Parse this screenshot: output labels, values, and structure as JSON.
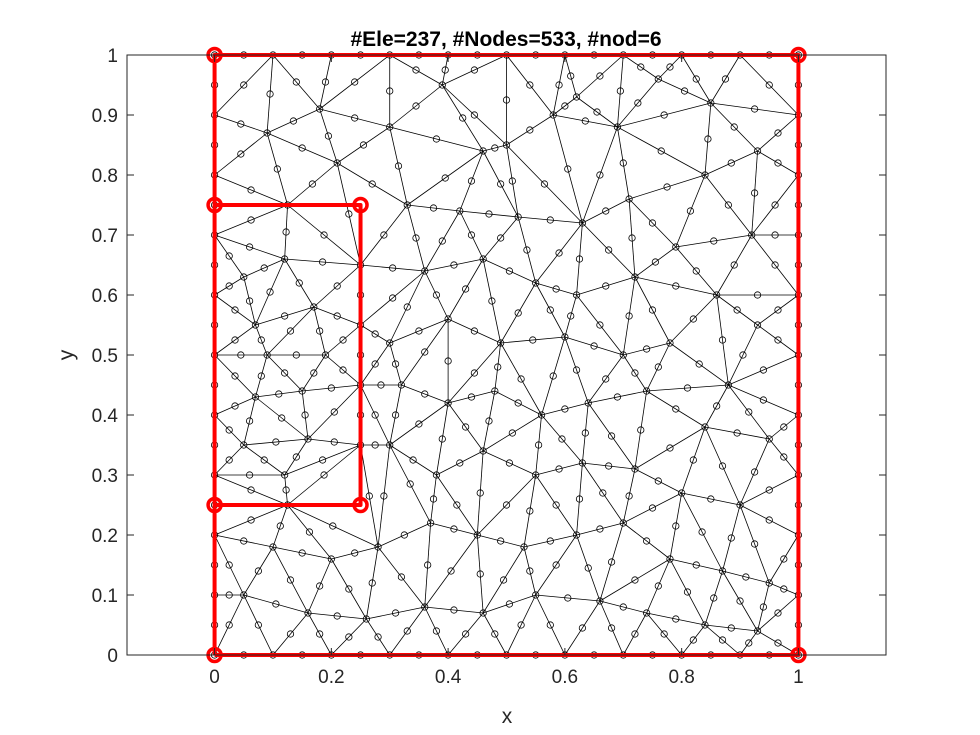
{
  "chart_data": {
    "type": "scatter",
    "title": "#Ele=237, #Nodes=533, #nod=6",
    "xlabel": "x",
    "ylabel": "y",
    "xlim": [
      -0.15,
      1.15
    ],
    "ylim": [
      0,
      1
    ],
    "xticks": [
      0,
      0.2,
      0.4,
      0.6,
      0.8,
      1
    ],
    "xtick_labels": [
      "0",
      "0.2",
      "0.4",
      "0.6",
      "0.8",
      "1"
    ],
    "yticks": [
      0,
      0.1,
      0.2,
      0.3,
      0.4,
      0.5,
      0.6,
      0.7,
      0.8,
      0.9,
      1
    ],
    "ytick_labels": [
      "0",
      "0.1",
      "0.2",
      "0.3",
      "0.4",
      "0.5",
      "0.6",
      "0.7",
      "0.8",
      "0.9",
      "1"
    ],
    "grid": false,
    "colors": {
      "mesh": "#000000",
      "boundary": "#ff0000",
      "axes": "#262626"
    },
    "boundary": {
      "outer": [
        [
          0,
          0
        ],
        [
          1,
          0
        ],
        [
          1,
          1
        ],
        [
          0,
          1
        ],
        [
          0,
          0
        ]
      ],
      "inner": [
        [
          0,
          0.25
        ],
        [
          0.25,
          0.25
        ],
        [
          0.25,
          0.75
        ],
        [
          0,
          0.75
        ]
      ]
    },
    "corner_points": [
      [
        0,
        0
      ],
      [
        1,
        0
      ],
      [
        1,
        1
      ],
      [
        0,
        1
      ],
      [
        0,
        0.75
      ],
      [
        0.25,
        0.75
      ],
      [
        0,
        0.25
      ],
      [
        0.25,
        0.25
      ]
    ],
    "vertices": [
      [
        0,
        0
      ],
      [
        0.1,
        0
      ],
      [
        0.2,
        0
      ],
      [
        0.3,
        0
      ],
      [
        0.4,
        0
      ],
      [
        0.5,
        0
      ],
      [
        0.6,
        0
      ],
      [
        0.7,
        0
      ],
      [
        0.8,
        0
      ],
      [
        0.9,
        0
      ],
      [
        1,
        0
      ],
      [
        0,
        1
      ],
      [
        0.1,
        1
      ],
      [
        0.2,
        1
      ],
      [
        0.3,
        1
      ],
      [
        0.4,
        1
      ],
      [
        0.5,
        1
      ],
      [
        0.6,
        1
      ],
      [
        0.7,
        1
      ],
      [
        0.8,
        1
      ],
      [
        0.9,
        1
      ],
      [
        1,
        1
      ],
      [
        0,
        0.1
      ],
      [
        0,
        0.2
      ],
      [
        0,
        0.3
      ],
      [
        0,
        0.4
      ],
      [
        0,
        0.5
      ],
      [
        0,
        0.6
      ],
      [
        0,
        0.7
      ],
      [
        0,
        0.8
      ],
      [
        0,
        0.9
      ],
      [
        1,
        0.1
      ],
      [
        1,
        0.2
      ],
      [
        1,
        0.3
      ],
      [
        1,
        0.4
      ],
      [
        1,
        0.5
      ],
      [
        1,
        0.6
      ],
      [
        1,
        0.7
      ],
      [
        1,
        0.8
      ],
      [
        1,
        0.9
      ],
      [
        0.25,
        0.35
      ],
      [
        0.25,
        0.45
      ],
      [
        0.25,
        0.55
      ],
      [
        0.25,
        0.65
      ],
      [
        0.125,
        0.75
      ],
      [
        0.125,
        0.25
      ],
      [
        0.09,
        0.87
      ],
      [
        0.18,
        0.91
      ],
      [
        0.21,
        0.82
      ],
      [
        0.3,
        0.88
      ],
      [
        0.39,
        0.95
      ],
      [
        0.46,
        0.84
      ],
      [
        0.5,
        0.85
      ],
      [
        0.58,
        0.9
      ],
      [
        0.62,
        0.93
      ],
      [
        0.69,
        0.88
      ],
      [
        0.76,
        0.96
      ],
      [
        0.85,
        0.92
      ],
      [
        0.93,
        0.84
      ],
      [
        0.33,
        0.75
      ],
      [
        0.42,
        0.74
      ],
      [
        0.52,
        0.73
      ],
      [
        0.63,
        0.72
      ],
      [
        0.71,
        0.76
      ],
      [
        0.84,
        0.8
      ],
      [
        0.92,
        0.7
      ],
      [
        0.12,
        0.66
      ],
      [
        0.05,
        0.63
      ],
      [
        0.17,
        0.58
      ],
      [
        0.07,
        0.55
      ],
      [
        0.09,
        0.5
      ],
      [
        0.19,
        0.5
      ],
      [
        0.15,
        0.44
      ],
      [
        0.07,
        0.43
      ],
      [
        0.16,
        0.36
      ],
      [
        0.05,
        0.35
      ],
      [
        0.12,
        0.3
      ],
      [
        0.36,
        0.64
      ],
      [
        0.46,
        0.66
      ],
      [
        0.55,
        0.62
      ],
      [
        0.62,
        0.6
      ],
      [
        0.72,
        0.63
      ],
      [
        0.79,
        0.68
      ],
      [
        0.86,
        0.6
      ],
      [
        0.93,
        0.55
      ],
      [
        0.3,
        0.52
      ],
      [
        0.4,
        0.56
      ],
      [
        0.49,
        0.52
      ],
      [
        0.6,
        0.53
      ],
      [
        0.7,
        0.5
      ],
      [
        0.78,
        0.52
      ],
      [
        0.88,
        0.45
      ],
      [
        0.95,
        0.36
      ],
      [
        0.32,
        0.45
      ],
      [
        0.4,
        0.42
      ],
      [
        0.48,
        0.44
      ],
      [
        0.56,
        0.4
      ],
      [
        0.64,
        0.42
      ],
      [
        0.74,
        0.44
      ],
      [
        0.84,
        0.38
      ],
      [
        0.3,
        0.35
      ],
      [
        0.38,
        0.3
      ],
      [
        0.46,
        0.34
      ],
      [
        0.55,
        0.3
      ],
      [
        0.63,
        0.32
      ],
      [
        0.72,
        0.31
      ],
      [
        0.8,
        0.27
      ],
      [
        0.9,
        0.25
      ],
      [
        0.1,
        0.18
      ],
      [
        0.2,
        0.16
      ],
      [
        0.28,
        0.18
      ],
      [
        0.37,
        0.22
      ],
      [
        0.45,
        0.2
      ],
      [
        0.53,
        0.18
      ],
      [
        0.62,
        0.2
      ],
      [
        0.7,
        0.22
      ],
      [
        0.78,
        0.16
      ],
      [
        0.87,
        0.14
      ],
      [
        0.95,
        0.12
      ],
      [
        0.05,
        0.1
      ],
      [
        0.16,
        0.07
      ],
      [
        0.26,
        0.06
      ],
      [
        0.36,
        0.08
      ],
      [
        0.46,
        0.07
      ],
      [
        0.55,
        0.1
      ],
      [
        0.66,
        0.09
      ],
      [
        0.74,
        0.07
      ],
      [
        0.84,
        0.05
      ],
      [
        0.93,
        0.04
      ]
    ]
  }
}
